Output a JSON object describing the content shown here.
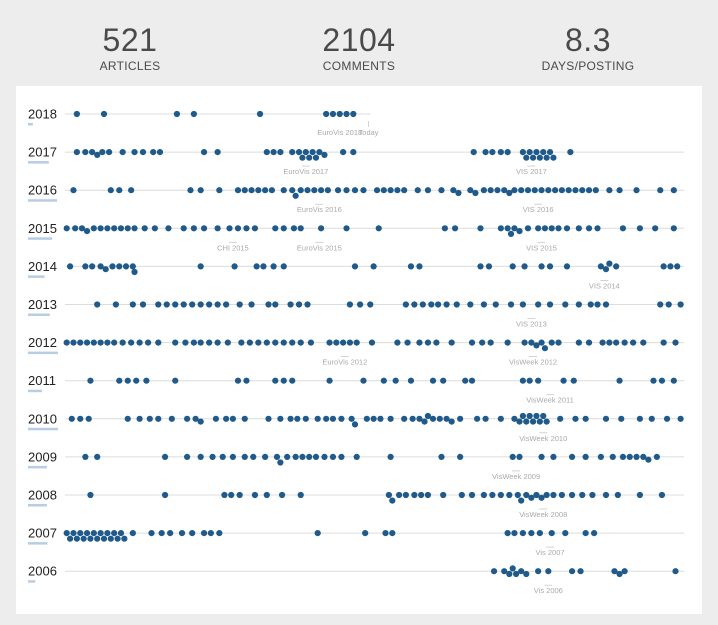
{
  "stats": [
    {
      "value": "521",
      "label": "ARTICLES"
    },
    {
      "value": "2104",
      "label": "COMMENTS"
    },
    {
      "value": "8.3",
      "label": "DAYS/POSTING"
    }
  ],
  "colors": {
    "dot": "#1f5a8a",
    "line": "#dcdcdc",
    "bar": "#b7cde3",
    "annotation": "#a9a9a9"
  },
  "chart_data": {
    "type": "scatter",
    "x_unit": "day of year",
    "xlim": [
      1,
      366
    ],
    "rows": [
      {
        "year": "2018",
        "posts": [
          8,
          24,
          67,
          77,
          116,
          155,
          159,
          163,
          167,
          171
        ]
      },
      {
        "year": "2017",
        "posts": [
          8,
          13,
          17,
          20,
          23,
          27,
          35,
          42,
          47,
          53,
          57,
          83,
          91,
          120,
          124,
          128,
          135,
          139,
          141,
          143,
          145,
          147,
          149,
          151,
          154,
          165,
          171,
          242,
          249,
          253,
          258,
          262,
          271,
          273,
          275,
          277,
          279,
          281,
          283,
          285,
          287,
          289,
          299
        ],
        "events": [
          {
            "label": "EuroVis 2017",
            "day": 143
          },
          {
            "label": "VIS 2017",
            "day": 276
          }
        ]
      },
      {
        "year": "2016",
        "posts": [
          6,
          28,
          33,
          40,
          75,
          81,
          92,
          103,
          107,
          111,
          115,
          119,
          123,
          130,
          135,
          137,
          140,
          144,
          148,
          152,
          156,
          162,
          167,
          172,
          177,
          185,
          189,
          193,
          197,
          201,
          209,
          215,
          223,
          230,
          233,
          240,
          243,
          248,
          252,
          256,
          260,
          263,
          266,
          270,
          274,
          278,
          282,
          286,
          290,
          294,
          298,
          302,
          306,
          310,
          314,
          322,
          328,
          338,
          352,
          360
        ],
        "events": [
          {
            "label": "EuroVis 2016",
            "day": 151
          },
          {
            "label": "VIS 2016",
            "day": 280
          }
        ]
      },
      {
        "year": "2015",
        "posts": [
          2,
          7,
          11,
          14,
          18,
          22,
          26,
          30,
          34,
          38,
          42,
          48,
          54,
          62,
          71,
          77,
          83,
          91,
          98,
          103,
          108,
          113,
          125,
          130,
          136,
          140,
          152,
          167,
          186,
          225,
          231,
          246,
          258,
          262,
          264,
          266,
          269,
          274,
          280,
          284,
          288,
          292,
          297,
          304,
          310,
          315,
          330,
          340,
          349,
          360
        ],
        "events": [
          {
            "label": "CHI 2015",
            "day": 100
          },
          {
            "label": "EuroVis 2015",
            "day": 151
          },
          {
            "label": "VIS 2015",
            "day": 282
          }
        ]
      },
      {
        "year": "2014",
        "posts": [
          4,
          13,
          17,
          22,
          25,
          29,
          33,
          37,
          41,
          42,
          81,
          101,
          114,
          118,
          124,
          130,
          172,
          183,
          205,
          210,
          246,
          251,
          265,
          272,
          282,
          287,
          297,
          317,
          320,
          322,
          326,
          354,
          358,
          362
        ],
        "events": [
          {
            "label": "VIS 2014",
            "day": 319
          }
        ]
      },
      {
        "year": "2013",
        "posts": [
          20,
          31,
          41,
          47,
          56,
          61,
          66,
          71,
          76,
          81,
          86,
          91,
          96,
          104,
          111,
          121,
          125,
          134,
          139,
          144,
          169,
          175,
          181,
          202,
          207,
          212,
          217,
          221,
          226,
          232,
          240,
          248,
          255,
          264,
          271,
          280,
          287,
          296,
          304,
          311,
          315,
          320,
          352,
          357,
          364
        ],
        "events": [
          {
            "label": "VIS 2013",
            "day": 276
          }
        ]
      },
      {
        "year": "2012",
        "posts": [
          2,
          6,
          10,
          14,
          18,
          22,
          26,
          30,
          35,
          40,
          45,
          50,
          56,
          66,
          72,
          77,
          81,
          86,
          91,
          97,
          105,
          110,
          115,
          120,
          125,
          130,
          135,
          140,
          146,
          157,
          161,
          165,
          169,
          173,
          182,
          197,
          203,
          210,
          215,
          220,
          229,
          241,
          247,
          252,
          262,
          272,
          276,
          279,
          282,
          284,
          288,
          292,
          304,
          310,
          318,
          322,
          326,
          331,
          336,
          342,
          354,
          361
        ],
        "events": [
          {
            "label": "EuroVis 2012",
            "day": 166
          },
          {
            "label": "VisWeek 2012",
            "day": 277
          }
        ]
      },
      {
        "year": "2011",
        "posts": [
          16,
          33,
          38,
          43,
          49,
          66,
          103,
          108,
          125,
          130,
          135,
          157,
          177,
          189,
          196,
          205,
          218,
          224,
          237,
          241,
          271,
          275,
          280,
          295,
          301,
          328,
          348,
          353,
          360
        ],
        "events": [
          {
            "label": "VisWeek 2011",
            "day": 287
          }
        ]
      },
      {
        "year": "2010",
        "posts": [
          5,
          10,
          15,
          38,
          45,
          51,
          56,
          64,
          73,
          78,
          81,
          90,
          96,
          100,
          107,
          121,
          128,
          134,
          138,
          143,
          150,
          155,
          159,
          164,
          170,
          172,
          179,
          183,
          187,
          193,
          201,
          206,
          210,
          213,
          215,
          218,
          222,
          226,
          229,
          234,
          244,
          249,
          258,
          266,
          269,
          271,
          273,
          275,
          277,
          279,
          281,
          283,
          285,
          293,
          302,
          308,
          320,
          329,
          340,
          347,
          356,
          364
        ],
        "events": [
          {
            "label": "VisWeek 2010",
            "day": 283
          }
        ]
      },
      {
        "year": "2009",
        "posts": [
          13,
          20,
          60,
          73,
          81,
          88,
          94,
          100,
          107,
          112,
          119,
          126,
          128,
          132,
          137,
          141,
          145,
          149,
          154,
          159,
          164,
          173,
          193,
          223,
          234,
          265,
          269,
          282,
          289,
          300,
          308,
          317,
          324,
          330,
          334,
          338,
          342,
          345,
          350
        ],
        "events": [
          {
            "label": "VisWeek 2009",
            "day": 267
          }
        ]
      },
      {
        "year": "2008",
        "posts": [
          16,
          60,
          95,
          99,
          104,
          113,
          120,
          129,
          140,
          192,
          194,
          198,
          202,
          207,
          211,
          215,
          224,
          235,
          241,
          248,
          253,
          258,
          263,
          268,
          270,
          273,
          276,
          279,
          282,
          285,
          289,
          294,
          300,
          306,
          312,
          320,
          327,
          340,
          353
        ],
        "events": [
          {
            "label": "VisWeek 2008",
            "day": 283
          }
        ]
      },
      {
        "year": "2007",
        "posts": [
          2,
          4,
          6,
          8,
          10,
          12,
          14,
          16,
          18,
          20,
          22,
          24,
          26,
          28,
          30,
          32,
          34,
          36,
          41,
          52,
          58,
          63,
          70,
          76,
          83,
          87,
          92,
          150,
          178,
          190,
          194,
          262,
          266,
          271,
          276,
          281,
          288,
          296,
          308,
          313
        ],
        "events": [
          {
            "label": "Vis 2007",
            "day": 287
          }
        ]
      },
      {
        "year": "2006",
        "posts": [
          254,
          260,
          263,
          265,
          267,
          270,
          273,
          280,
          286,
          300,
          305,
          325,
          328,
          331,
          361
        ],
        "events": [
          {
            "label": "Vis 2006",
            "day": 286
          }
        ]
      }
    ],
    "today": {
      "label": "Today",
      "day": 180
    }
  }
}
